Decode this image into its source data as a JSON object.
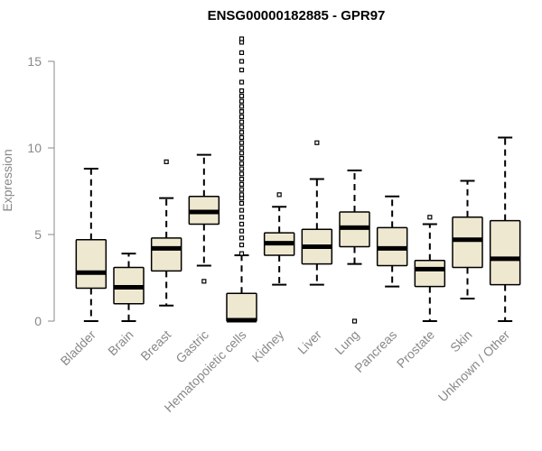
{
  "chart_data": {
    "type": "box",
    "title": "ENSG00000182885 - GPR97",
    "xlabel": "",
    "ylabel": "Expression",
    "ylim": [
      0,
      16.5
    ],
    "yticks": [
      0,
      5,
      10,
      15
    ],
    "grid": false,
    "box_fill": "#efe8d0",
    "categories": [
      "Bladder",
      "Brain",
      "Breast",
      "Gastric",
      "Hematopoietic cells",
      "Kidney",
      "Liver",
      "Lung",
      "Pancreas",
      "Prostate",
      "Skin",
      "Unknown / Other"
    ],
    "boxes": [
      {
        "whisker_low": 0.0,
        "q1": 1.9,
        "median": 2.8,
        "q3": 4.7,
        "whisker_high": 8.8,
        "outliers": []
      },
      {
        "whisker_low": 0.0,
        "q1": 1.0,
        "median": 1.95,
        "q3": 3.1,
        "whisker_high": 3.9,
        "outliers": []
      },
      {
        "whisker_low": 0.9,
        "q1": 2.9,
        "median": 4.2,
        "q3": 4.8,
        "whisker_high": 7.1,
        "outliers": [
          9.2
        ]
      },
      {
        "whisker_low": 3.2,
        "q1": 5.6,
        "median": 6.3,
        "q3": 7.2,
        "whisker_high": 9.6,
        "outliers": [
          2.3
        ]
      },
      {
        "whisker_low": 0.0,
        "q1": 0.0,
        "median": 0.05,
        "q3": 1.6,
        "whisker_high": 3.8,
        "outliers": [
          3.9,
          4.4,
          4.8,
          5.2,
          5.6,
          6.0,
          6.4,
          6.8,
          7.1,
          7.3,
          7.6,
          7.9,
          8.2,
          8.5,
          8.8,
          9.1,
          9.4,
          9.7,
          10.0,
          10.3,
          10.6,
          10.9,
          11.2,
          11.5,
          11.8,
          12.1,
          12.4,
          12.7,
          13.0,
          13.3,
          13.8,
          14.5,
          15.0,
          15.5,
          16.1,
          16.3
        ]
      },
      {
        "whisker_low": 2.1,
        "q1": 3.8,
        "median": 4.5,
        "q3": 5.1,
        "whisker_high": 6.6,
        "outliers": [
          7.3
        ]
      },
      {
        "whisker_low": 2.1,
        "q1": 3.3,
        "median": 4.3,
        "q3": 5.3,
        "whisker_high": 8.2,
        "outliers": [
          10.3
        ]
      },
      {
        "whisker_low": 3.3,
        "q1": 4.3,
        "median": 5.4,
        "q3": 6.3,
        "whisker_high": 8.7,
        "outliers": [
          0.0
        ]
      },
      {
        "whisker_low": 2.0,
        "q1": 3.2,
        "median": 4.2,
        "q3": 5.4,
        "whisker_high": 7.2,
        "outliers": []
      },
      {
        "whisker_low": 0.0,
        "q1": 2.0,
        "median": 3.0,
        "q3": 3.5,
        "whisker_high": 5.6,
        "outliers": [
          6.0
        ]
      },
      {
        "whisker_low": 1.3,
        "q1": 3.1,
        "median": 4.7,
        "q3": 6.0,
        "whisker_high": 8.1,
        "outliers": []
      },
      {
        "whisker_low": 0.0,
        "q1": 2.1,
        "median": 3.6,
        "q3": 5.8,
        "whisker_high": 10.6,
        "outliers": []
      }
    ]
  }
}
